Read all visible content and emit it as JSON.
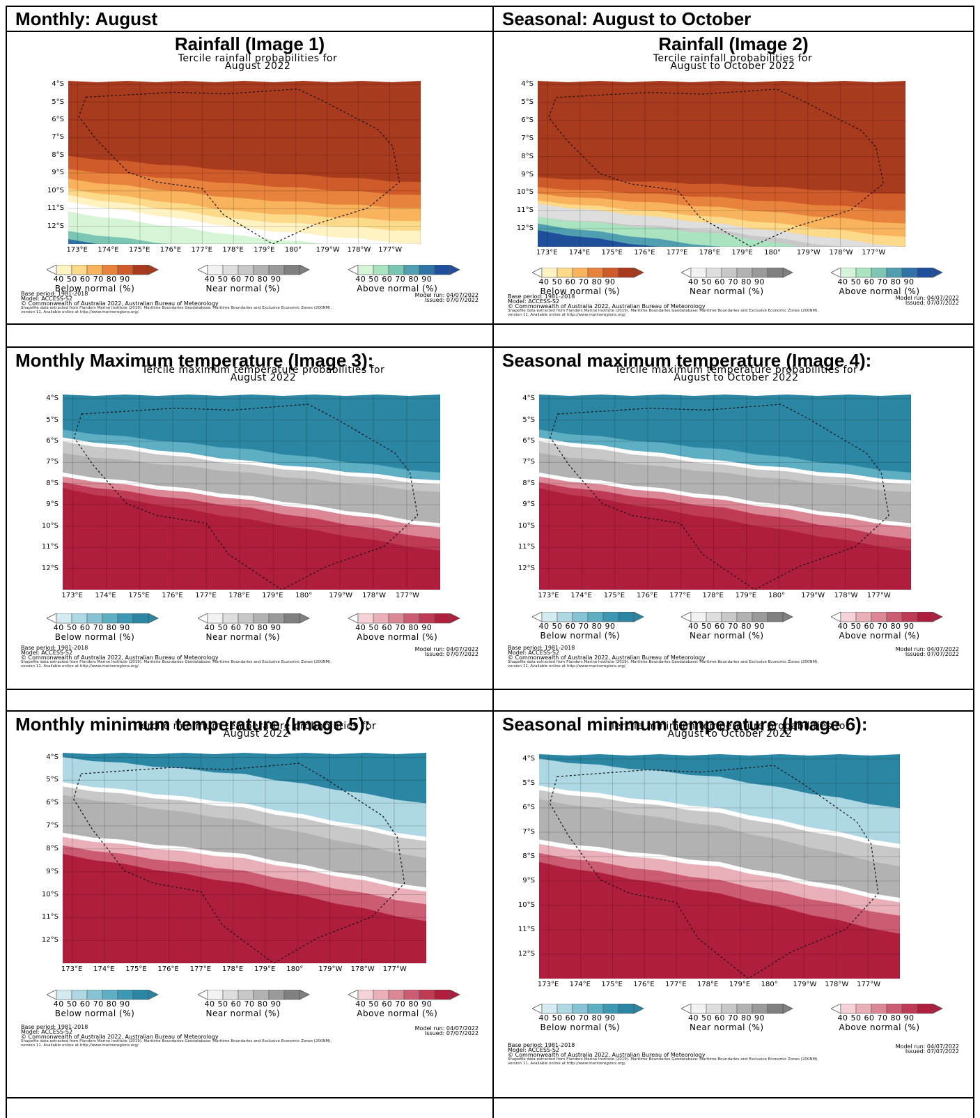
{
  "headers": {
    "monthly": "Monthly: August",
    "seasonal": "Seasonal: August to October",
    "rain_monthly": "Rainfall (Image 1)",
    "rain_seasonal": "Rainfall (Image 2)",
    "tmax_monthly": "Monthly Maximum temperature (Image 3):",
    "tmax_seasonal": "Seasonal maximum temperature (Image 4):",
    "tmin_monthly": "Monthly minimum temperature (Image 5):",
    "tmin_seasonal": "Seasonal minimum temperature (Image 6):"
  },
  "maps": [
    {
      "title1": "Tercile rainfall probabilities for",
      "title2": "August 2022",
      "kind": "rain",
      "variant": "monthly"
    },
    {
      "title1": "Tercile rainfall probabilities for",
      "title2": "August to October 2022",
      "kind": "rain",
      "variant": "seasonal"
    },
    {
      "title1": "Tercile maximum temperature probabilities for",
      "title2": "August 2022",
      "kind": "temp",
      "variant": "monthly"
    },
    {
      "title1": "Tercile maximum temperature probabilities for",
      "title2": "August to October 2022",
      "kind": "temp",
      "variant": "seasonal"
    },
    {
      "title1": "Tercile minimum temperature probabilities for",
      "title2": "August 2022",
      "kind": "tmin",
      "variant": "monthly"
    },
    {
      "title1": "Tercile minimum temperature probabilities for",
      "title2": "August to October 2022",
      "kind": "tmin",
      "variant": "seasonal"
    }
  ],
  "axes": {
    "lat_labels": [
      "4°S",
      "5°S",
      "6°S",
      "7°S",
      "8°S",
      "9°S",
      "10°S",
      "11°S",
      "12°S"
    ],
    "lon_labels": [
      "173°E",
      "174°E",
      "175°E",
      "176°E",
      "177°E",
      "178°E",
      "179°E",
      "180°",
      "179°W",
      "178°W",
      "177°W"
    ]
  },
  "legend": {
    "ticks": "40 50 60 70 80 90",
    "below": "Below normal (%)",
    "near": "Near normal (%)",
    "above": "Above normal (%)",
    "rain_below_colors": [
      "#fff3c4",
      "#fdd98a",
      "#f8b35c",
      "#e8833d",
      "#cf5a2a",
      "#a83a1e"
    ],
    "rain_near_colors": [
      "#f2f2f2",
      "#dedede",
      "#c8c8c8",
      "#b2b2b2",
      "#9a9a9a",
      "#808080"
    ],
    "rain_above_colors": [
      "#d6f5d6",
      "#a9e3c0",
      "#7cc6b4",
      "#4f9fb0",
      "#2f73a8",
      "#1f4f9a"
    ],
    "temp_below_colors": [
      "#d4ebf1",
      "#aed8e3",
      "#86c3d4",
      "#5eaec4",
      "#3c98b3",
      "#2a86a3"
    ],
    "temp_near_colors": [
      "#f2f2f2",
      "#dedede",
      "#c8c8c8",
      "#b2b2b2",
      "#9a9a9a",
      "#808080"
    ],
    "temp_above_colors": [
      "#f5d2d8",
      "#eab0ba",
      "#dc8796",
      "#cc5c72",
      "#be3a55",
      "#b01e3e"
    ]
  },
  "footer": {
    "base": "Base period: 1981-2018",
    "model": "Model: ACCESS-S2",
    "copy": "© Commonwealth of Australia 2022, Australian Bureau of Meteorology",
    "shape": "Shapefile data extracted from Flanders Marine Institute (2019). Maritime Boundaries Geodatabase: Maritime Boundaries and Exclusive Economic Zones (200NM),",
    "version": "version 11. Available online at http://www.marineregions.org/.",
    "run": "Model run: 04/07/2022",
    "issued": "Issued: 07/07/2022"
  }
}
